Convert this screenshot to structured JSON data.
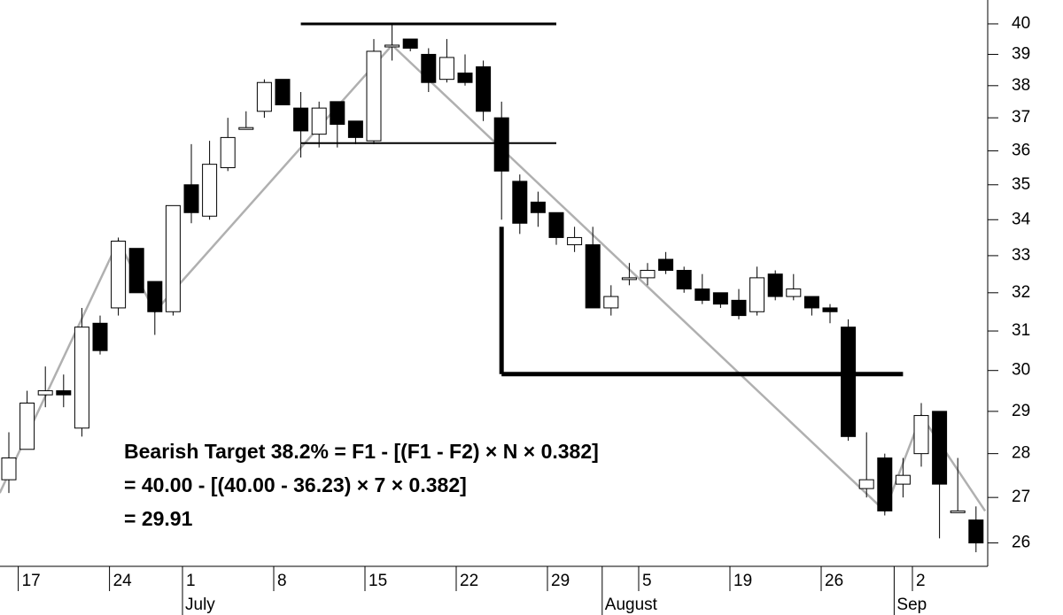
{
  "chart_data": {
    "type": "candlestick",
    "log_scale": true,
    "up_color": "#ffffff",
    "down_color": "#000000",
    "categories": [
      null,
      "17",
      null,
      null,
      null,
      null,
      "24",
      null,
      null,
      null,
      "1",
      null,
      null,
      null,
      null,
      "8",
      null,
      null,
      null,
      null,
      "15",
      null,
      null,
      null,
      null,
      "22",
      null,
      null,
      null,
      null,
      "29",
      null,
      null,
      null,
      null,
      "5",
      null,
      null,
      null,
      null,
      "19",
      null,
      null,
      null,
      null,
      "26",
      null,
      null,
      null,
      null,
      "2",
      null,
      null,
      null
    ],
    "months": [
      {
        "label": "July",
        "at": 10
      },
      {
        "label": "August",
        "at": 33
      },
      {
        "label": "Sep",
        "at": 49
      }
    ],
    "open": [
      27.4,
      28.1,
      29.4,
      29.5,
      28.6,
      31.2,
      31.6,
      33.2,
      32.3,
      31.5,
      35.0,
      34.1,
      35.5,
      36.7,
      37.2,
      38.2,
      37.3,
      36.5,
      37.5,
      36.9,
      36.3,
      39.3,
      39.5,
      39.0,
      38.2,
      38.4,
      38.6,
      37.0,
      35.1,
      34.5,
      34.2,
      33.3,
      33.3,
      31.6,
      32.4,
      32.4,
      32.9,
      32.6,
      32.1,
      32.0,
      31.8,
      31.5,
      32.5,
      31.9,
      31.9,
      31.6,
      31.1,
      27.2,
      27.9,
      27.3,
      28.0,
      29.0,
      26.7,
      26.5
    ],
    "high": [
      28.5,
      29.5,
      30.1,
      29.9,
      31.6,
      31.4,
      33.5,
      33.2,
      32.3,
      34.4,
      36.2,
      36.3,
      37.0,
      37.2,
      38.2,
      38.2,
      37.8,
      37.5,
      37.5,
      36.9,
      39.5,
      40.0,
      39.5,
      39.2,
      39.5,
      39.0,
      38.8,
      37.5,
      35.3,
      34.8,
      34.2,
      33.8,
      33.8,
      32.2,
      32.8,
      32.8,
      33.1,
      32.7,
      32.5,
      32.0,
      32.1,
      32.7,
      32.6,
      32.5,
      31.9,
      31.7,
      31.3,
      28.5,
      28.0,
      27.9,
      29.2,
      29.0,
      27.9,
      26.8
    ],
    "low": [
      27.1,
      28.1,
      29.1,
      29.1,
      28.4,
      30.4,
      31.4,
      32.0,
      30.9,
      31.4,
      33.9,
      34.0,
      35.4,
      36.7,
      37.0,
      37.4,
      35.8,
      36.1,
      36.1,
      36.2,
      36.2,
      38.8,
      39.1,
      37.8,
      38.1,
      38.0,
      36.9,
      34.0,
      33.6,
      33.8,
      33.3,
      33.1,
      31.6,
      31.4,
      32.2,
      32.2,
      32.5,
      32.0,
      31.7,
      31.6,
      31.3,
      31.4,
      31.8,
      31.8,
      31.4,
      31.2,
      28.3,
      27.0,
      26.6,
      27.0,
      27.7,
      26.1,
      26.7,
      25.8
    ],
    "close": [
      27.9,
      29.2,
      29.5,
      29.4,
      31.1,
      30.5,
      33.4,
      32.0,
      31.5,
      34.4,
      34.2,
      35.6,
      36.4,
      36.7,
      38.1,
      37.4,
      36.6,
      37.3,
      36.8,
      36.4,
      39.1,
      39.3,
      39.2,
      38.1,
      38.9,
      38.1,
      37.2,
      35.4,
      33.9,
      34.2,
      33.5,
      33.5,
      31.6,
      31.9,
      32.4,
      32.6,
      32.6,
      32.1,
      31.8,
      31.7,
      31.4,
      32.4,
      31.9,
      32.1,
      31.6,
      31.5,
      28.4,
      27.4,
      26.7,
      27.5,
      28.9,
      27.3,
      26.7,
      26.0
    ],
    "ylim": [
      25.5,
      40.8
    ],
    "yticks": [
      26,
      27,
      28,
      29,
      30,
      31,
      32,
      33,
      34,
      35,
      36,
      37,
      38,
      39,
      40
    ],
    "zigzag": {
      "color": "#b0b0b0",
      "x": [
        -0.5,
        6,
        8,
        21,
        48,
        50,
        53.5
      ],
      "values": [
        27.1,
        33.4,
        31.5,
        39.3,
        26.7,
        28.9,
        26.7
      ]
    },
    "levels": [
      {
        "x": [
          16,
          30
        ],
        "values": [
          40.0,
          40.0
        ],
        "width": 3
      },
      {
        "x": [
          16,
          30
        ],
        "values": [
          36.23,
          36.23
        ],
        "width": 2
      },
      {
        "x": [
          27,
          27
        ],
        "values": [
          33.8,
          29.91
        ],
        "width": 5
      },
      {
        "x": [
          27,
          49
        ],
        "values": [
          29.91,
          29.91
        ],
        "width": 5
      }
    ],
    "annotations": [
      "Bearish Target 38.2% = F1 - [(F1 - F2) × N × 0.382]",
      "= 40.00 - [(40.00 - 36.23) × 7 × 0.382]",
      "= 29.91"
    ]
  }
}
